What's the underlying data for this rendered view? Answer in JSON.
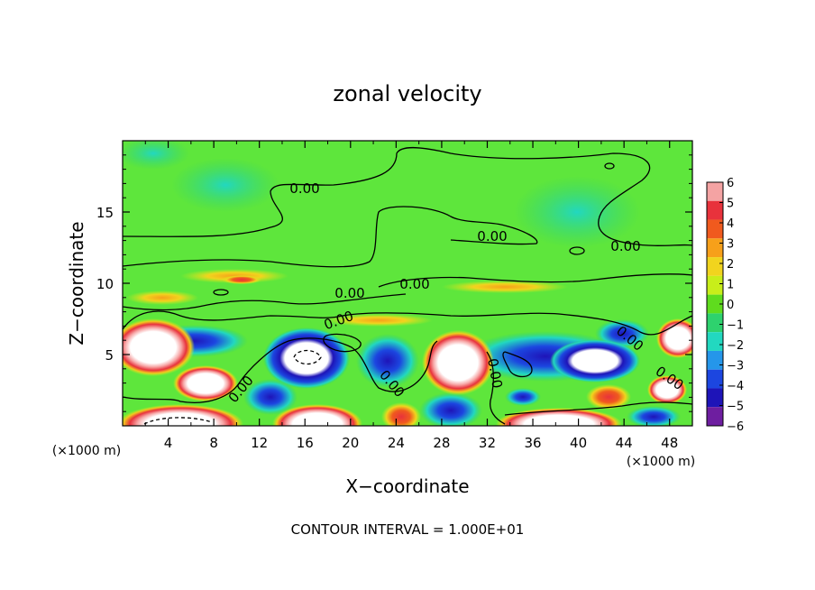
{
  "chart_data": {
    "type": "heatmap",
    "title": "zonal velocity",
    "xlabel": "X−coordinate",
    "ylabel": "Z−coordinate",
    "x_unit_label": "(×1000 m)",
    "y_unit_label": "(×1000 m)",
    "footer": "CONTOUR INTERVAL = 1.000E+01",
    "xlim": [
      0,
      50
    ],
    "ylim": [
      0,
      20
    ],
    "x_ticks": [
      4,
      8,
      12,
      16,
      20,
      24,
      28,
      32,
      36,
      40,
      44,
      48
    ],
    "y_ticks": [
      5,
      10,
      15
    ],
    "colorbar": {
      "levels": [
        6,
        5,
        4,
        3,
        2,
        1,
        0,
        -1,
        -2,
        -3,
        -4,
        -5,
        -6
      ],
      "colors": [
        "#f4a3a3",
        "#e8323c",
        "#f05a1e",
        "#f7a01a",
        "#f1d41e",
        "#c8ee1a",
        "#5fdc1e",
        "#2ed26e",
        "#22d8c0",
        "#2596ea",
        "#1c46e0",
        "#1e14b8",
        "#6e1ea0"
      ]
    },
    "contour_label": "0.00",
    "background_color": "#5ee63c"
  }
}
